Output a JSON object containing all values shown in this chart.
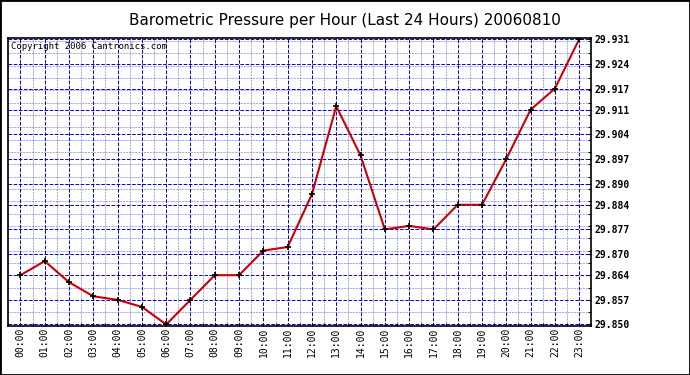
{
  "title": "Barometric Pressure per Hour (Last 24 Hours) 20060810",
  "copyright": "Copyright 2006 Cantronics.com",
  "x_labels": [
    "00:00",
    "01:00",
    "02:00",
    "03:00",
    "04:00",
    "05:00",
    "06:00",
    "07:00",
    "08:00",
    "09:00",
    "10:00",
    "11:00",
    "12:00",
    "13:00",
    "14:00",
    "15:00",
    "16:00",
    "17:00",
    "18:00",
    "19:00",
    "20:00",
    "21:00",
    "22:00",
    "23:00"
  ],
  "y_values": [
    29.864,
    29.868,
    29.862,
    29.858,
    29.857,
    29.855,
    29.85,
    29.857,
    29.864,
    29.864,
    29.871,
    29.872,
    29.887,
    29.912,
    29.898,
    29.877,
    29.878,
    29.877,
    29.884,
    29.884,
    29.897,
    29.911,
    29.917,
    29.931
  ],
  "line_color": "#cc0000",
  "marker_color": "#000000",
  "grid_color": "#0000cc",
  "background_color": "#ffffff",
  "plot_bg_color": "#ffffff",
  "title_fontsize": 11,
  "copyright_fontsize": 6.5,
  "tick_fontsize": 7,
  "ylim_min": 29.85,
  "ylim_max": 29.931,
  "ytick_values": [
    29.85,
    29.857,
    29.864,
    29.87,
    29.877,
    29.884,
    29.89,
    29.897,
    29.904,
    29.911,
    29.917,
    29.924,
    29.931
  ]
}
